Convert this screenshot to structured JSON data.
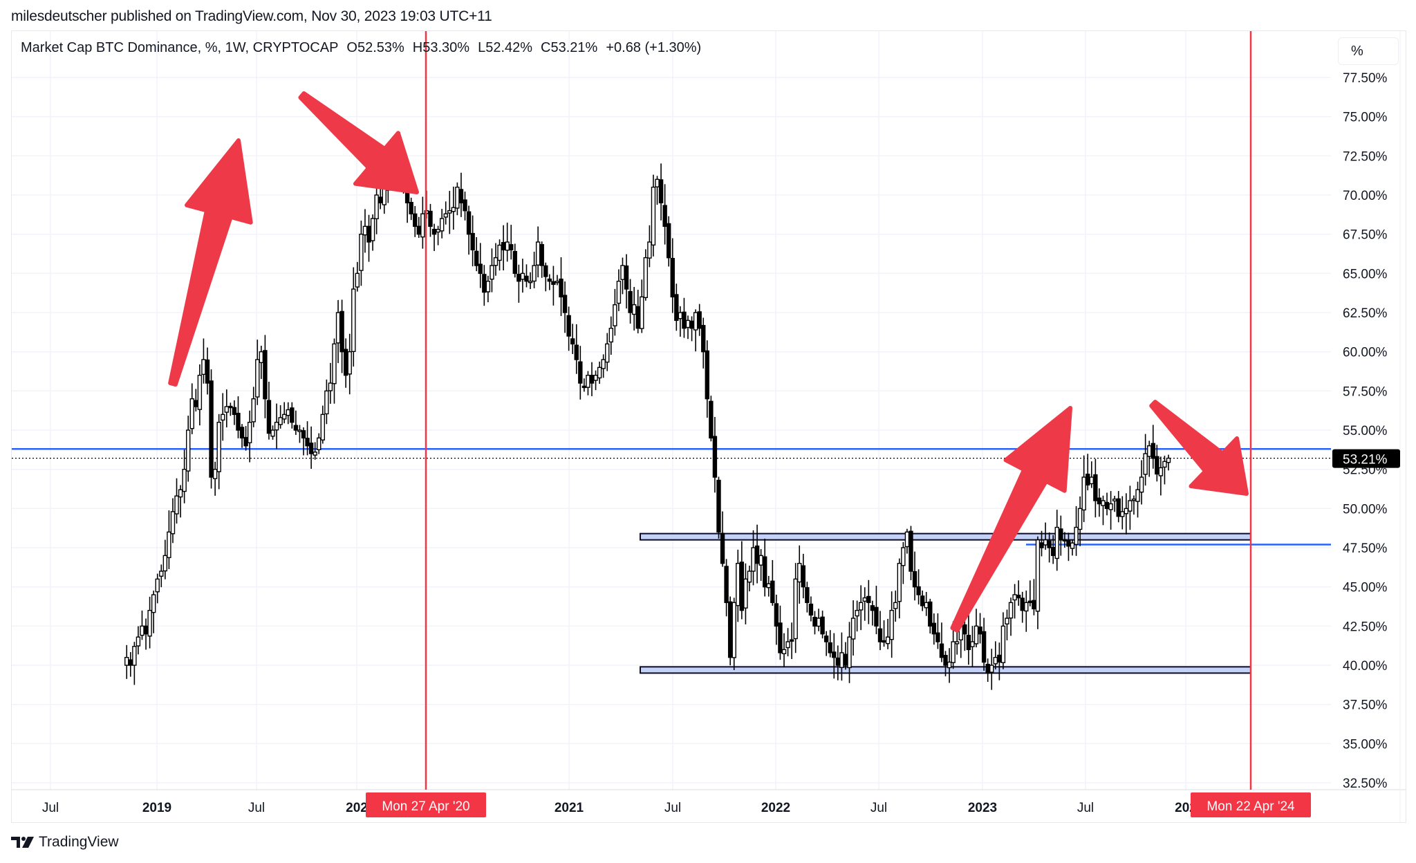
{
  "header": {
    "publisher_line": "milesdeutscher published on TradingView.com, Nov 30, 2023 19:03 UTC+11"
  },
  "legend": {
    "symbol": "Market Cap BTC Dominance, %, 1W, CRYPTOCAP",
    "open": "O52.53%",
    "high": "H53.30%",
    "low": "L52.42%",
    "close": "C53.21%",
    "change": "+0.68 (+1.30%)"
  },
  "scale_button": {
    "label": "%"
  },
  "footer": {
    "logo_mark": "𝟏𝟕",
    "logo_text": "TradingView"
  },
  "colors": {
    "accent_red": "#f23645",
    "annotation_red": "#ee3a48",
    "level_blue": "#2962ff",
    "box_fill": "#c5d2f8",
    "candle_up_fill": "#ffffff",
    "candle_down_fill": "#000000",
    "grid": "#f0f3fa",
    "price_tag_bg": "#000000"
  },
  "chart_data": {
    "type": "candlestick",
    "title": "Market Cap BTC Dominance, %, 1W, CRYPTOCAP",
    "timeframe": "1W",
    "ylabel": "%",
    "ylim": [
      31.5,
      79
    ],
    "y_ticks": [
      "77.50%",
      "75.00%",
      "72.50%",
      "70.00%",
      "67.50%",
      "65.00%",
      "62.50%",
      "60.00%",
      "57.50%",
      "55.00%",
      "52.50%",
      "50.00%",
      "47.50%",
      "45.00%",
      "42.50%",
      "40.00%",
      "37.50%",
      "35.00%",
      "32.50%"
    ],
    "x_ticks": [
      {
        "label": "Jul",
        "bold": false
      },
      {
        "label": "2019",
        "bold": true
      },
      {
        "label": "Jul",
        "bold": false
      },
      {
        "label": "202",
        "bold": true
      },
      {
        "label": "2021",
        "bold": true
      },
      {
        "label": "Jul",
        "bold": false
      },
      {
        "label": "2022",
        "bold": true
      },
      {
        "label": "Jul",
        "bold": false
      },
      {
        "label": "2023",
        "bold": true
      },
      {
        "label": "Jul",
        "bold": false
      },
      {
        "label": "202",
        "bold": true
      }
    ],
    "last_price": {
      "value": 53.21,
      "label": "53.21%"
    },
    "last_ohlc": {
      "open": 52.53,
      "high": 53.3,
      "low": 52.42,
      "close": 53.21
    },
    "weekly_closes_start": "mid-2018",
    "weekly_closes": [
      40.5,
      40.0,
      41.2,
      41.8,
      42.5,
      42.0,
      43.5,
      44.5,
      45.5,
      46.0,
      47.0,
      48.5,
      49.8,
      50.8,
      51.2,
      52.5,
      55.0,
      57.0,
      56.5,
      58.5,
      59.5,
      58.0,
      52.0,
      52.5,
      55.5,
      56.0,
      56.5,
      56.5,
      56.0,
      55.0,
      54.5,
      54.0,
      55.5,
      57.0,
      59.5,
      60.0,
      57.0,
      54.8,
      55.0,
      55.5,
      55.8,
      56.0,
      56.3,
      55.5,
      55.0,
      55.0,
      54.5,
      54.0,
      53.5,
      53.6,
      54.5,
      56.0,
      57.5,
      58.0,
      60.5,
      62.5,
      60.0,
      58.5,
      60.0,
      64.0,
      65.0,
      67.5,
      68.0,
      67.0,
      68.5,
      70.0,
      69.5,
      70.5,
      71.0,
      72.5,
      72.8,
      71.5,
      70.5,
      69.5,
      68.8,
      68.0,
      67.5,
      68.8,
      69.0,
      68.0,
      67.5,
      67.8,
      68.5,
      68.8,
      69.0,
      69.2,
      70.5,
      69.5,
      69.0,
      67.5,
      66.5,
      65.5,
      65.0,
      63.8,
      64.5,
      65.5,
      66.0,
      66.8,
      66.5,
      67.0,
      66.5,
      65.0,
      64.5,
      65.0,
      64.5,
      64.5,
      65.5,
      67.0,
      65.5,
      64.8,
      64.5,
      64.3,
      64.5,
      63.5,
      62.5,
      61.0,
      60.5,
      59.5,
      58.0,
      57.8,
      58.5,
      58.0,
      58.5,
      59.0,
      59.5,
      60.5,
      61.5,
      63.0,
      64.5,
      65.5,
      64.0,
      62.5,
      63.0,
      61.5,
      63.5,
      66.0,
      67.0,
      70.5,
      71.0,
      69.5,
      68.0,
      66.0,
      63.5,
      62.0,
      62.5,
      61.5,
      62.0,
      61.5,
      62.5,
      61.5,
      60.0,
      57.0,
      54.5,
      52.0,
      48.5,
      46.5,
      44.0,
      40.5,
      44.0,
      46.5,
      43.5,
      45.5,
      46.0,
      47.5,
      46.5,
      47.0,
      45.0,
      45.2,
      44.0,
      42.5,
      40.8,
      41.0,
      41.5,
      41.6,
      45.5,
      46.5,
      45.0,
      44.0,
      43.2,
      42.5,
      43.0,
      42.0,
      41.5,
      40.8,
      40.5,
      40.0,
      40.8,
      40.0,
      41.8,
      43.0,
      43.5,
      44.0,
      44.3,
      44.0,
      43.5,
      42.5,
      41.5,
      41.5,
      41.8,
      43.5,
      44.0,
      46.5,
      47.5,
      48.5,
      46.0,
      45.0,
      44.5,
      43.8,
      44.0,
      42.5,
      42.0,
      41.5,
      40.5,
      40.0,
      40.2,
      41.5,
      41.5,
      42.5,
      42.0,
      41.0,
      41.5,
      42.5,
      42.0,
      40.2,
      39.5,
      40.0,
      40.5,
      40.2,
      42.5,
      43.0,
      44.0,
      44.5,
      44.3,
      43.5,
      44.0,
      44.0,
      43.6,
      48.0,
      47.5,
      48.0,
      47.5,
      47.0,
      48.8,
      48.0,
      48.0,
      47.6,
      47.8,
      48.8,
      50.0,
      52.0,
      51.5,
      52.0,
      50.5,
      50.3,
      50.5,
      50.0,
      50.3,
      50.6,
      49.5,
      49.8,
      50.0,
      50.5,
      50.6,
      51.2,
      52.0,
      53.5,
      54.0,
      53.2,
      52.2,
      52.6,
      53.0,
      53.21
    ],
    "annotations": {
      "horizontal_lines": [
        {
          "value": 53.8,
          "color": "#2962ff"
        },
        {
          "value": 47.7,
          "color": "#2962ff"
        }
      ],
      "range_boxes": [
        {
          "top": 48.4,
          "bottom": 48.0,
          "from": "2021-05",
          "to": "2024-04-22"
        },
        {
          "top": 39.9,
          "bottom": 39.5,
          "from": "2021-05",
          "to": "2024-04-22"
        }
      ],
      "vertical_lines": [
        {
          "date_label": "Mon 27 Apr '20",
          "color": "#f23645"
        },
        {
          "date_label": "Mon 22 Apr '24",
          "color": "#f23645"
        }
      ],
      "arrows": [
        {
          "direction": "up",
          "period": "2019 rally"
        },
        {
          "direction": "down",
          "period": "into 2020 halving"
        },
        {
          "direction": "up",
          "period": "2023 rally"
        },
        {
          "direction": "down",
          "period": "into 2024 halving"
        }
      ]
    },
    "legend_position": "top-left",
    "grid": true
  }
}
